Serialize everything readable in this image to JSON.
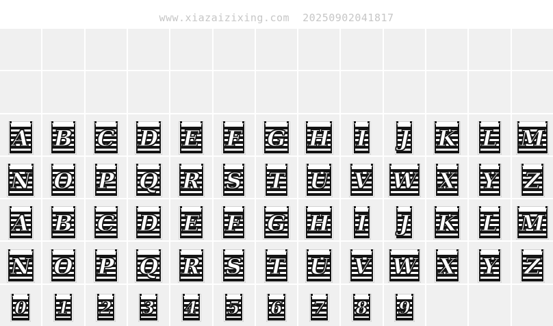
{
  "watermark": {
    "text": "www.xiazaizixing.com  20250902041817"
  },
  "colors": {
    "page_background": "#ffffff",
    "cell_background": "#f0f0f0",
    "cell_separator": "#ffffff",
    "stripe_dark": "#141414",
    "stripe_light": "#ffffff",
    "glyph_letter_fill": "#ffffff",
    "glyph_letter_outline": "#141414",
    "watermark_text": "#c6c6c6"
  },
  "grid": {
    "columns": 13,
    "row_count": 7,
    "rows": [
      {
        "name": "empty-row-1",
        "glyphs": []
      },
      {
        "name": "empty-row-2",
        "glyphs": []
      },
      {
        "name": "row-uppercase-a-m",
        "glyphs": [
          "A",
          "B",
          "C",
          "D",
          "E",
          "F",
          "G",
          "H",
          "I",
          "J",
          "K",
          "L",
          "M"
        ]
      },
      {
        "name": "row-uppercase-n-z",
        "glyphs": [
          "N",
          "O",
          "P",
          "Q",
          "R",
          "S",
          "T",
          "U",
          "V",
          "W",
          "X",
          "Y",
          "Z"
        ]
      },
      {
        "name": "row-lowercase-a-m-shown-as-caps",
        "glyphs": [
          "A",
          "B",
          "C",
          "D",
          "E",
          "F",
          "G",
          "H",
          "I",
          "J",
          "K",
          "L",
          "M"
        ]
      },
      {
        "name": "row-lowercase-n-z-shown-as-caps",
        "glyphs": [
          "N",
          "O",
          "P",
          "Q",
          "R",
          "S",
          "T",
          "U",
          "V",
          "W",
          "X",
          "Y",
          "Z"
        ]
      },
      {
        "name": "row-digits",
        "small": true,
        "glyphs": [
          "0",
          "1",
          "2",
          "3",
          "4",
          "5",
          "6",
          "7",
          "8",
          "9"
        ]
      }
    ]
  }
}
